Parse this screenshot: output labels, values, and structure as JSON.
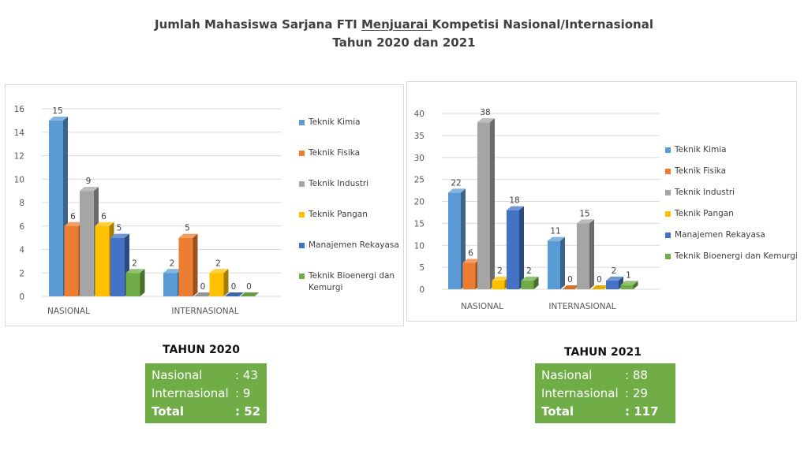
{
  "title": {
    "prefix": "Jumlah Mahasiswa Sarjana FTI ",
    "underlined": "Menjuarai ",
    "suffix": "Kompetisi Nasional/Internasional",
    "line2": "Tahun 2020 dan 2021"
  },
  "colors": {
    "Teknik Kimia": "#5b9bd5",
    "Teknik Fisika": "#ed7d31",
    "Teknik Industri": "#a5a5a5",
    "Teknik Pangan": "#ffc000",
    "Manajemen Rekayasa": "#4472c4",
    "Teknik Bioenergi dan Kemurgi": "#70ad47"
  },
  "chart_data": [
    {
      "type": "bar",
      "categories": [
        "NASIONAL",
        "INTERNASIONAL"
      ],
      "series": [
        {
          "name": "Teknik Kimia",
          "values": [
            15,
            2
          ]
        },
        {
          "name": "Teknik Fisika",
          "values": [
            6,
            5
          ]
        },
        {
          "name": "Teknik Industri",
          "values": [
            9,
            0
          ]
        },
        {
          "name": "Teknik Pangan",
          "values": [
            6,
            2
          ]
        },
        {
          "name": "Manajemen Rekayasa",
          "values": [
            5,
            0
          ]
        },
        {
          "name": "Teknik Bioenergi dan Kemurgi",
          "values": [
            2,
            0
          ]
        }
      ],
      "legend_labels": [
        "Teknik Kimia",
        "Teknik Fisika",
        "Teknik Industri",
        "Teknik Pangan",
        "Manajemen Rekayasa",
        "Teknik Bioenergi dan Kemurgi"
      ],
      "ylim": [
        0,
        16
      ],
      "yticks": [
        0,
        2,
        4,
        6,
        8,
        10,
        12,
        14,
        16
      ],
      "grid": true,
      "style": "3d-clustered",
      "legend_position": "right"
    },
    {
      "type": "bar",
      "categories": [
        "NASIONAL",
        "INTERNASIONAL"
      ],
      "series": [
        {
          "name": "Teknik Kimia",
          "values": [
            22,
            11
          ]
        },
        {
          "name": "Teknik Fisika",
          "values": [
            6,
            0
          ]
        },
        {
          "name": "Teknik Industri",
          "values": [
            38,
            15
          ]
        },
        {
          "name": "Teknik Pangan",
          "values": [
            2,
            0
          ]
        },
        {
          "name": "Manajemen Rekayasa",
          "values": [
            18,
            2
          ]
        },
        {
          "name": "Teknik Bioenergi dan Kemurgi",
          "values": [
            2,
            1
          ]
        }
      ],
      "legend_labels": [
        "Teknik Kimia",
        "Teknik Fisika",
        "Teknik Industri",
        "Teknik Pangan",
        "Manajemen Rekayasa",
        "Teknik Bioenergi dan Kemurgi"
      ],
      "ylim": [
        0,
        40
      ],
      "yticks": [
        0,
        5,
        10,
        15,
        20,
        25,
        30,
        35,
        40
      ],
      "grid": true,
      "style": "3d-clustered",
      "legend_position": "right"
    }
  ],
  "summaries": [
    {
      "heading": "TAHUN 2020",
      "rows": [
        {
          "label": "Nasional",
          "value": ": 43"
        },
        {
          "label": "Internasional",
          "value": ":   9"
        },
        {
          "label": "Total",
          "value": ": 52"
        }
      ]
    },
    {
      "heading": "TAHUN 2021",
      "rows": [
        {
          "label": "Nasional",
          "value": ":   88"
        },
        {
          "label": "Internasional",
          "value": ":  29"
        },
        {
          "label": "Total",
          "value": ": 117"
        }
      ]
    }
  ]
}
